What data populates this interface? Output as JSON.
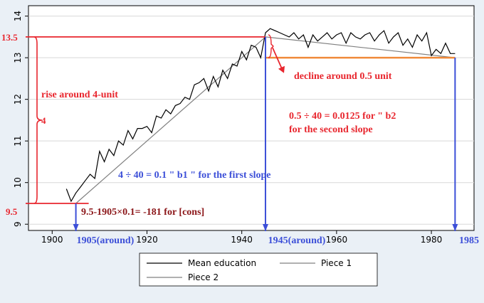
{
  "chart_data": {
    "type": "line",
    "xlim": [
      1895,
      1989
    ],
    "ylim": [
      8.85,
      14.25
    ],
    "grid": true,
    "x_ticks": [
      1900,
      1920,
      1940,
      1960,
      1980
    ],
    "y_ticks": [
      9,
      10,
      11,
      12,
      13,
      14
    ],
    "series": [
      {
        "name": "Mean education",
        "color": "#000000",
        "x": [
          1903,
          1904,
          1905,
          1906,
          1907,
          1908,
          1909,
          1910,
          1911,
          1912,
          1913,
          1914,
          1915,
          1916,
          1917,
          1918,
          1919,
          1920,
          1921,
          1922,
          1923,
          1924,
          1925,
          1926,
          1927,
          1928,
          1929,
          1930,
          1931,
          1932,
          1933,
          1934,
          1935,
          1936,
          1937,
          1938,
          1939,
          1940,
          1941,
          1942,
          1943,
          1944,
          1945,
          1946,
          1947,
          1948,
          1949,
          1950,
          1951,
          1952,
          1953,
          1954,
          1955,
          1956,
          1957,
          1958,
          1959,
          1960,
          1961,
          1962,
          1963,
          1964,
          1965,
          1966,
          1967,
          1968,
          1969,
          1970,
          1971,
          1972,
          1973,
          1974,
          1975,
          1976,
          1977,
          1978,
          1979,
          1980,
          1981,
          1982,
          1983,
          1984,
          1985
        ],
        "y": [
          9.85,
          9.55,
          9.75,
          9.9,
          10.05,
          10.2,
          10.1,
          10.75,
          10.5,
          10.8,
          10.65,
          11.0,
          10.9,
          11.25,
          11.05,
          11.3,
          11.3,
          11.35,
          11.2,
          11.6,
          11.55,
          11.75,
          11.65,
          11.85,
          11.9,
          12.05,
          12.0,
          12.35,
          12.4,
          12.5,
          12.2,
          12.55,
          12.3,
          12.7,
          12.5,
          12.85,
          12.8,
          13.15,
          12.95,
          13.3,
          13.25,
          13.0,
          13.6,
          13.7,
          13.65,
          13.6,
          13.55,
          13.5,
          13.6,
          13.45,
          13.55,
          13.25,
          13.55,
          13.4,
          13.5,
          13.6,
          13.45,
          13.55,
          13.6,
          13.35,
          13.6,
          13.5,
          13.45,
          13.55,
          13.6,
          13.4,
          13.55,
          13.65,
          13.35,
          13.5,
          13.6,
          13.3,
          13.45,
          13.25,
          13.55,
          13.4,
          13.6,
          13.05,
          13.2,
          13.1,
          13.35,
          13.1,
          13.1
        ]
      },
      {
        "name": "Piece 1",
        "color": "#808080",
        "x": [
          1905,
          1945
        ],
        "y": [
          9.5,
          13.5
        ]
      },
      {
        "name": "Piece 2",
        "color": "#808080",
        "x": [
          1945,
          1985
        ],
        "y": [
          13.5,
          13.0
        ]
      }
    ],
    "legend_position": "bottom",
    "annotations": {
      "y_13_5": "13.5",
      "y_9_5": "9.5",
      "x_1905": "1905(around)",
      "x_1945": "1945(around)",
      "x_1985": "1985",
      "rise": "rise around 4-unit",
      "four": "4",
      "decline": "decline around 0.5 unit",
      "b2_line1": "0.5 ÷ 40 = 0.0125 for \" b2",
      "b2_line2": "for the second slope",
      "b1": "4 ÷ 40 = 0.1 \" b1 \" for the first slope",
      "cons": "9.5-1905×0.1= -181 for [cons]"
    }
  },
  "legend": {
    "mean_education": "Mean education",
    "piece1": "Piece 1",
    "piece2": "Piece 2"
  },
  "colors": {
    "red": "#e8262e",
    "blue": "#3c4fd8",
    "orange": "#f08a3a",
    "darkred": "#8b1518"
  }
}
